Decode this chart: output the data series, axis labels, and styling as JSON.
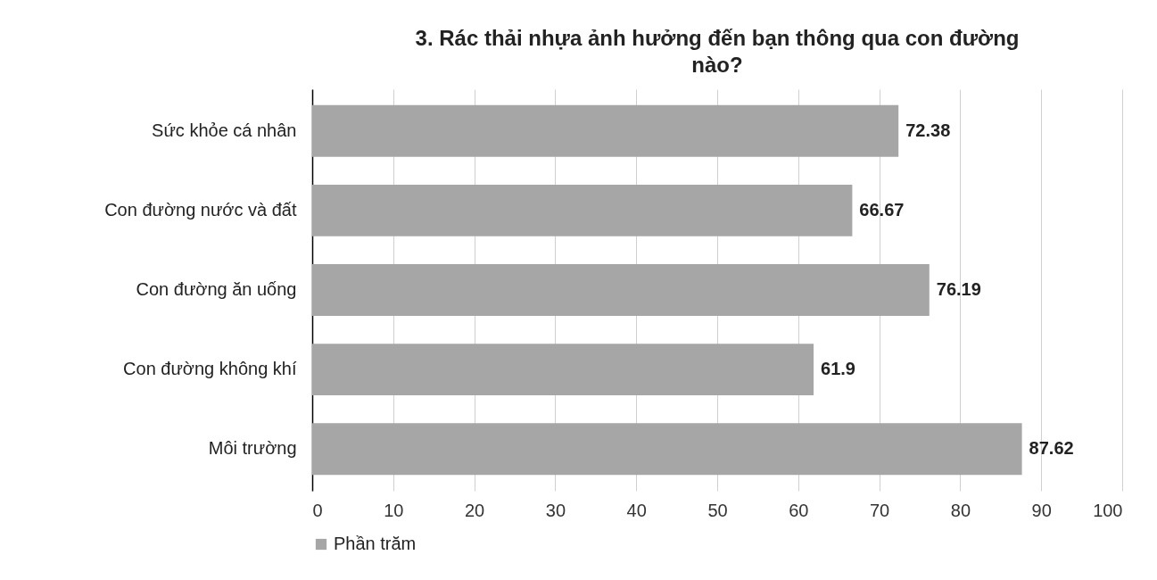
{
  "chart_data": {
    "type": "bar",
    "orientation": "horizontal",
    "title": "3. Rác thải nhựa ảnh hưởng đến bạn thông qua con đường nào?",
    "categories": [
      "Sức khỏe cá nhân",
      "Con đường nước và đất",
      "Con đường ăn uống",
      "Con đường không khí ",
      "Môi trường"
    ],
    "series": [
      {
        "name": "Phần trăm",
        "color": "#a6a6a6",
        "values": [
          72.38,
          66.67,
          76.19,
          61.9,
          87.62
        ]
      }
    ],
    "xlim": [
      0,
      100
    ],
    "xticks": [
      0,
      10,
      20,
      30,
      40,
      50,
      60,
      70,
      80,
      90,
      100
    ],
    "grid": "x",
    "legend": "bottom",
    "data_labels": true
  }
}
